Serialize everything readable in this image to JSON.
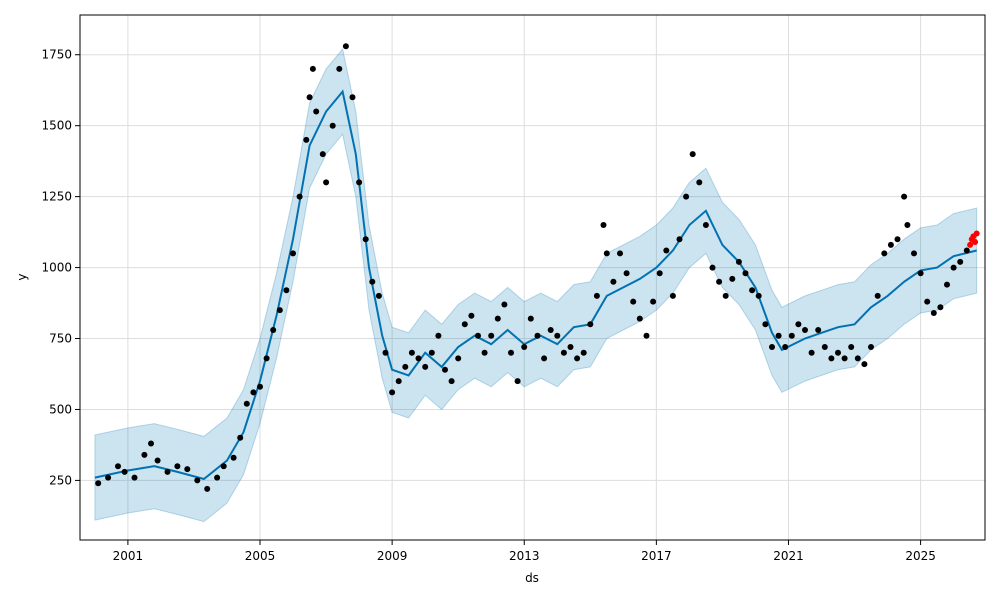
{
  "chart_data": {
    "type": "scatter",
    "title": "",
    "xlabel": "ds",
    "ylabel": "y",
    "xlim": [
      1999.55,
      2026.95
    ],
    "ylim": [
      40,
      1890
    ],
    "x_ticks": [
      2001,
      2005,
      2009,
      2013,
      2017,
      2021,
      2025
    ],
    "x_tick_labels": [
      "2001",
      "2005",
      "2009",
      "2013",
      "2017",
      "2021",
      "2025"
    ],
    "y_ticks": [
      250,
      500,
      750,
      1000,
      1250,
      1500,
      1750
    ],
    "y_tick_labels": [
      "250",
      "500",
      "750",
      "1000",
      "1250",
      "1500",
      "1750"
    ],
    "grid": true,
    "colors": {
      "observed": "#000000",
      "recent": "#ff0000",
      "forecast": "#0072B2",
      "interval": "#0072B2"
    },
    "series": [
      {
        "role": "observed",
        "points": [
          [
            2000.1,
            240
          ],
          [
            2000.4,
            260
          ],
          [
            2000.7,
            300
          ],
          [
            2000.9,
            280
          ],
          [
            2001.2,
            260
          ],
          [
            2001.5,
            340
          ],
          [
            2001.7,
            380
          ],
          [
            2001.9,
            320
          ],
          [
            2002.2,
            280
          ],
          [
            2002.5,
            300
          ],
          [
            2002.8,
            290
          ],
          [
            2003.1,
            250
          ],
          [
            2003.4,
            220
          ],
          [
            2003.7,
            260
          ],
          [
            2003.9,
            300
          ],
          [
            2004.2,
            330
          ],
          [
            2004.4,
            400
          ],
          [
            2004.6,
            520
          ],
          [
            2004.8,
            560
          ],
          [
            2005.0,
            580
          ],
          [
            2005.2,
            680
          ],
          [
            2005.4,
            780
          ],
          [
            2005.6,
            850
          ],
          [
            2005.8,
            920
          ],
          [
            2006.0,
            1050
          ],
          [
            2006.2,
            1250
          ],
          [
            2006.4,
            1450
          ],
          [
            2006.5,
            1600
          ],
          [
            2006.6,
            1700
          ],
          [
            2006.7,
            1550
          ],
          [
            2006.9,
            1400
          ],
          [
            2007.0,
            1300
          ],
          [
            2007.2,
            1500
          ],
          [
            2007.4,
            1700
          ],
          [
            2007.6,
            1780
          ],
          [
            2007.8,
            1600
          ],
          [
            2008.0,
            1300
          ],
          [
            2008.2,
            1100
          ],
          [
            2008.4,
            950
          ],
          [
            2008.6,
            900
          ],
          [
            2008.8,
            700
          ],
          [
            2009.0,
            560
          ],
          [
            2009.2,
            600
          ],
          [
            2009.4,
            650
          ],
          [
            2009.6,
            700
          ],
          [
            2009.8,
            680
          ],
          [
            2010.0,
            650
          ],
          [
            2010.2,
            700
          ],
          [
            2010.4,
            760
          ],
          [
            2010.6,
            640
          ],
          [
            2010.8,
            600
          ],
          [
            2011.0,
            680
          ],
          [
            2011.2,
            800
          ],
          [
            2011.4,
            830
          ],
          [
            2011.6,
            760
          ],
          [
            2011.8,
            700
          ],
          [
            2012.0,
            760
          ],
          [
            2012.2,
            820
          ],
          [
            2012.4,
            870
          ],
          [
            2012.6,
            700
          ],
          [
            2012.8,
            600
          ],
          [
            2013.0,
            720
          ],
          [
            2013.2,
            820
          ],
          [
            2013.4,
            760
          ],
          [
            2013.6,
            680
          ],
          [
            2013.8,
            780
          ],
          [
            2014.0,
            760
          ],
          [
            2014.2,
            700
          ],
          [
            2014.4,
            720
          ],
          [
            2014.6,
            680
          ],
          [
            2014.8,
            700
          ],
          [
            2015.0,
            800
          ],
          [
            2015.2,
            900
          ],
          [
            2015.4,
            1150
          ],
          [
            2015.5,
            1050
          ],
          [
            2015.7,
            950
          ],
          [
            2015.9,
            1050
          ],
          [
            2016.1,
            980
          ],
          [
            2016.3,
            880
          ],
          [
            2016.5,
            820
          ],
          [
            2016.7,
            760
          ],
          [
            2016.9,
            880
          ],
          [
            2017.1,
            980
          ],
          [
            2017.3,
            1060
          ],
          [
            2017.5,
            900
          ],
          [
            2017.7,
            1100
          ],
          [
            2017.9,
            1250
          ],
          [
            2018.1,
            1400
          ],
          [
            2018.3,
            1300
          ],
          [
            2018.5,
            1150
          ],
          [
            2018.7,
            1000
          ],
          [
            2018.9,
            950
          ],
          [
            2019.1,
            900
          ],
          [
            2019.3,
            960
          ],
          [
            2019.5,
            1020
          ],
          [
            2019.7,
            980
          ],
          [
            2019.9,
            920
          ],
          [
            2020.1,
            900
          ],
          [
            2020.3,
            800
          ],
          [
            2020.5,
            720
          ],
          [
            2020.7,
            760
          ],
          [
            2020.9,
            720
          ],
          [
            2021.1,
            760
          ],
          [
            2021.3,
            800
          ],
          [
            2021.5,
            780
          ],
          [
            2021.7,
            700
          ],
          [
            2021.9,
            780
          ],
          [
            2022.1,
            720
          ],
          [
            2022.3,
            680
          ],
          [
            2022.5,
            700
          ],
          [
            2022.7,
            680
          ],
          [
            2022.9,
            720
          ],
          [
            2023.1,
            680
          ],
          [
            2023.3,
            660
          ],
          [
            2023.5,
            720
          ],
          [
            2023.7,
            900
          ],
          [
            2023.9,
            1050
          ],
          [
            2024.1,
            1080
          ],
          [
            2024.3,
            1100
          ],
          [
            2024.5,
            1250
          ],
          [
            2024.6,
            1150
          ],
          [
            2024.8,
            1050
          ],
          [
            2025.0,
            980
          ],
          [
            2025.2,
            880
          ],
          [
            2025.4,
            840
          ],
          [
            2025.6,
            860
          ],
          [
            2025.8,
            940
          ],
          [
            2026.0,
            1000
          ],
          [
            2026.2,
            1020
          ],
          [
            2026.4,
            1060
          ]
        ]
      },
      {
        "role": "recent",
        "points": [
          [
            2026.5,
            1080
          ],
          [
            2026.55,
            1100
          ],
          [
            2026.6,
            1110
          ],
          [
            2026.65,
            1090
          ],
          [
            2026.7,
            1120
          ]
        ]
      },
      {
        "role": "forecast",
        "points": [
          [
            2000.0,
            260
          ],
          [
            2001.0,
            285
          ],
          [
            2001.8,
            300
          ],
          [
            2002.5,
            280
          ],
          [
            2003.3,
            255
          ],
          [
            2004.0,
            320
          ],
          [
            2004.5,
            420
          ],
          [
            2005.0,
            600
          ],
          [
            2005.5,
            830
          ],
          [
            2006.0,
            1100
          ],
          [
            2006.5,
            1430
          ],
          [
            2007.0,
            1550
          ],
          [
            2007.5,
            1620
          ],
          [
            2007.9,
            1400
          ],
          [
            2008.3,
            1000
          ],
          [
            2008.7,
            760
          ],
          [
            2009.0,
            640
          ],
          [
            2009.5,
            620
          ],
          [
            2010.0,
            700
          ],
          [
            2010.5,
            650
          ],
          [
            2011.0,
            720
          ],
          [
            2011.5,
            760
          ],
          [
            2012.0,
            730
          ],
          [
            2012.5,
            780
          ],
          [
            2013.0,
            730
          ],
          [
            2013.5,
            760
          ],
          [
            2014.0,
            730
          ],
          [
            2014.5,
            790
          ],
          [
            2015.0,
            800
          ],
          [
            2015.5,
            900
          ],
          [
            2016.0,
            930
          ],
          [
            2016.5,
            960
          ],
          [
            2017.0,
            1000
          ],
          [
            2017.5,
            1060
          ],
          [
            2018.0,
            1150
          ],
          [
            2018.5,
            1200
          ],
          [
            2019.0,
            1080
          ],
          [
            2019.5,
            1020
          ],
          [
            2020.0,
            930
          ],
          [
            2020.5,
            770
          ],
          [
            2020.8,
            710
          ],
          [
            2021.5,
            750
          ],
          [
            2022.0,
            770
          ],
          [
            2022.5,
            790
          ],
          [
            2023.0,
            800
          ],
          [
            2023.5,
            860
          ],
          [
            2024.0,
            900
          ],
          [
            2024.5,
            950
          ],
          [
            2025.0,
            990
          ],
          [
            2025.5,
            1000
          ],
          [
            2026.0,
            1040
          ],
          [
            2026.7,
            1060
          ]
        ]
      },
      {
        "role": "interval",
        "lower_offset": -150,
        "upper_offset": 150
      }
    ]
  }
}
